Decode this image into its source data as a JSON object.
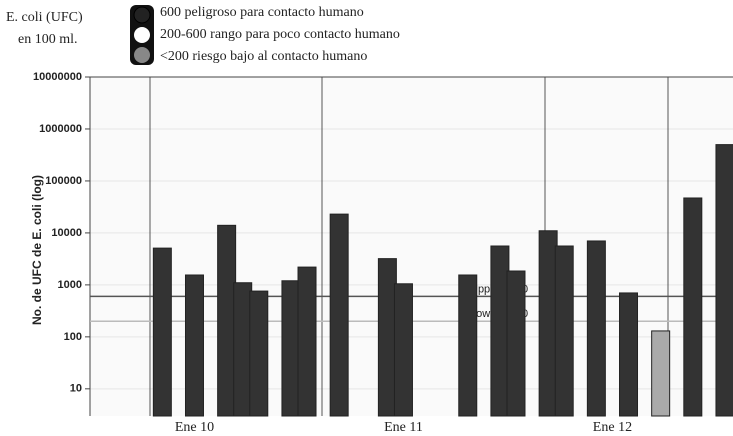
{
  "chart_data": {
    "type": "bar",
    "title": [
      "E. coli (UFC)",
      "en 100 ml."
    ],
    "legend": [
      "600  peligroso para contacto humano",
      "200-600  rango para poco contacto humano",
      "<200  riesgo bajo al contacto humano"
    ],
    "y_label": "No. de UFC de E. coli (log)",
    "log_scale": true,
    "grid": true,
    "ylim": [
      3,
      10000000
    ],
    "yticks": [
      10,
      100,
      1000,
      10000,
      100000,
      1000000,
      10000000
    ],
    "categories": [
      null,
      null,
      null,
      null,
      null,
      null,
      "Ene 10",
      null,
      null,
      null,
      null,
      null,
      null,
      null,
      null,
      null,
      null,
      null,
      null,
      "Ene 11",
      null,
      null,
      null,
      null,
      null,
      null,
      null,
      null,
      null,
      null,
      null,
      null,
      "Ene 12",
      null,
      null,
      null,
      null,
      null,
      null,
      null
    ],
    "values": [
      null,
      null,
      null,
      null,
      5100,
      null,
      1550,
      null,
      14000,
      1100,
      760,
      null,
      1200,
      2200,
      null,
      23000,
      null,
      null,
      3200,
      1050,
      null,
      null,
      null,
      1550,
      null,
      5600,
      1850,
      null,
      11000,
      5600,
      null,
      7000,
      null,
      700,
      null,
      130,
      null,
      47000,
      null,
      500000
    ],
    "colors": [
      "#333",
      "#333",
      "#333",
      "#333",
      "#333",
      "#333",
      "#333",
      "#333",
      "#333",
      "#333",
      "#333",
      "#333",
      "#333",
      "#333",
      "#333",
      "#333",
      "#333",
      "#333",
      "#333",
      "#333",
      "#333",
      "#333",
      "#333",
      "#333",
      "#333",
      "#333",
      "#333",
      "#333",
      "#333",
      "#333",
      "#333",
      "#333",
      "#333",
      "#333",
      "#333",
      "#aaa",
      "#333",
      "#333",
      "#333",
      "#333"
    ],
    "reference_lines": [
      {
        "label": "Upper - 600",
        "value": 600
      },
      {
        "label": "Lower - 200",
        "value": 200
      }
    ]
  }
}
